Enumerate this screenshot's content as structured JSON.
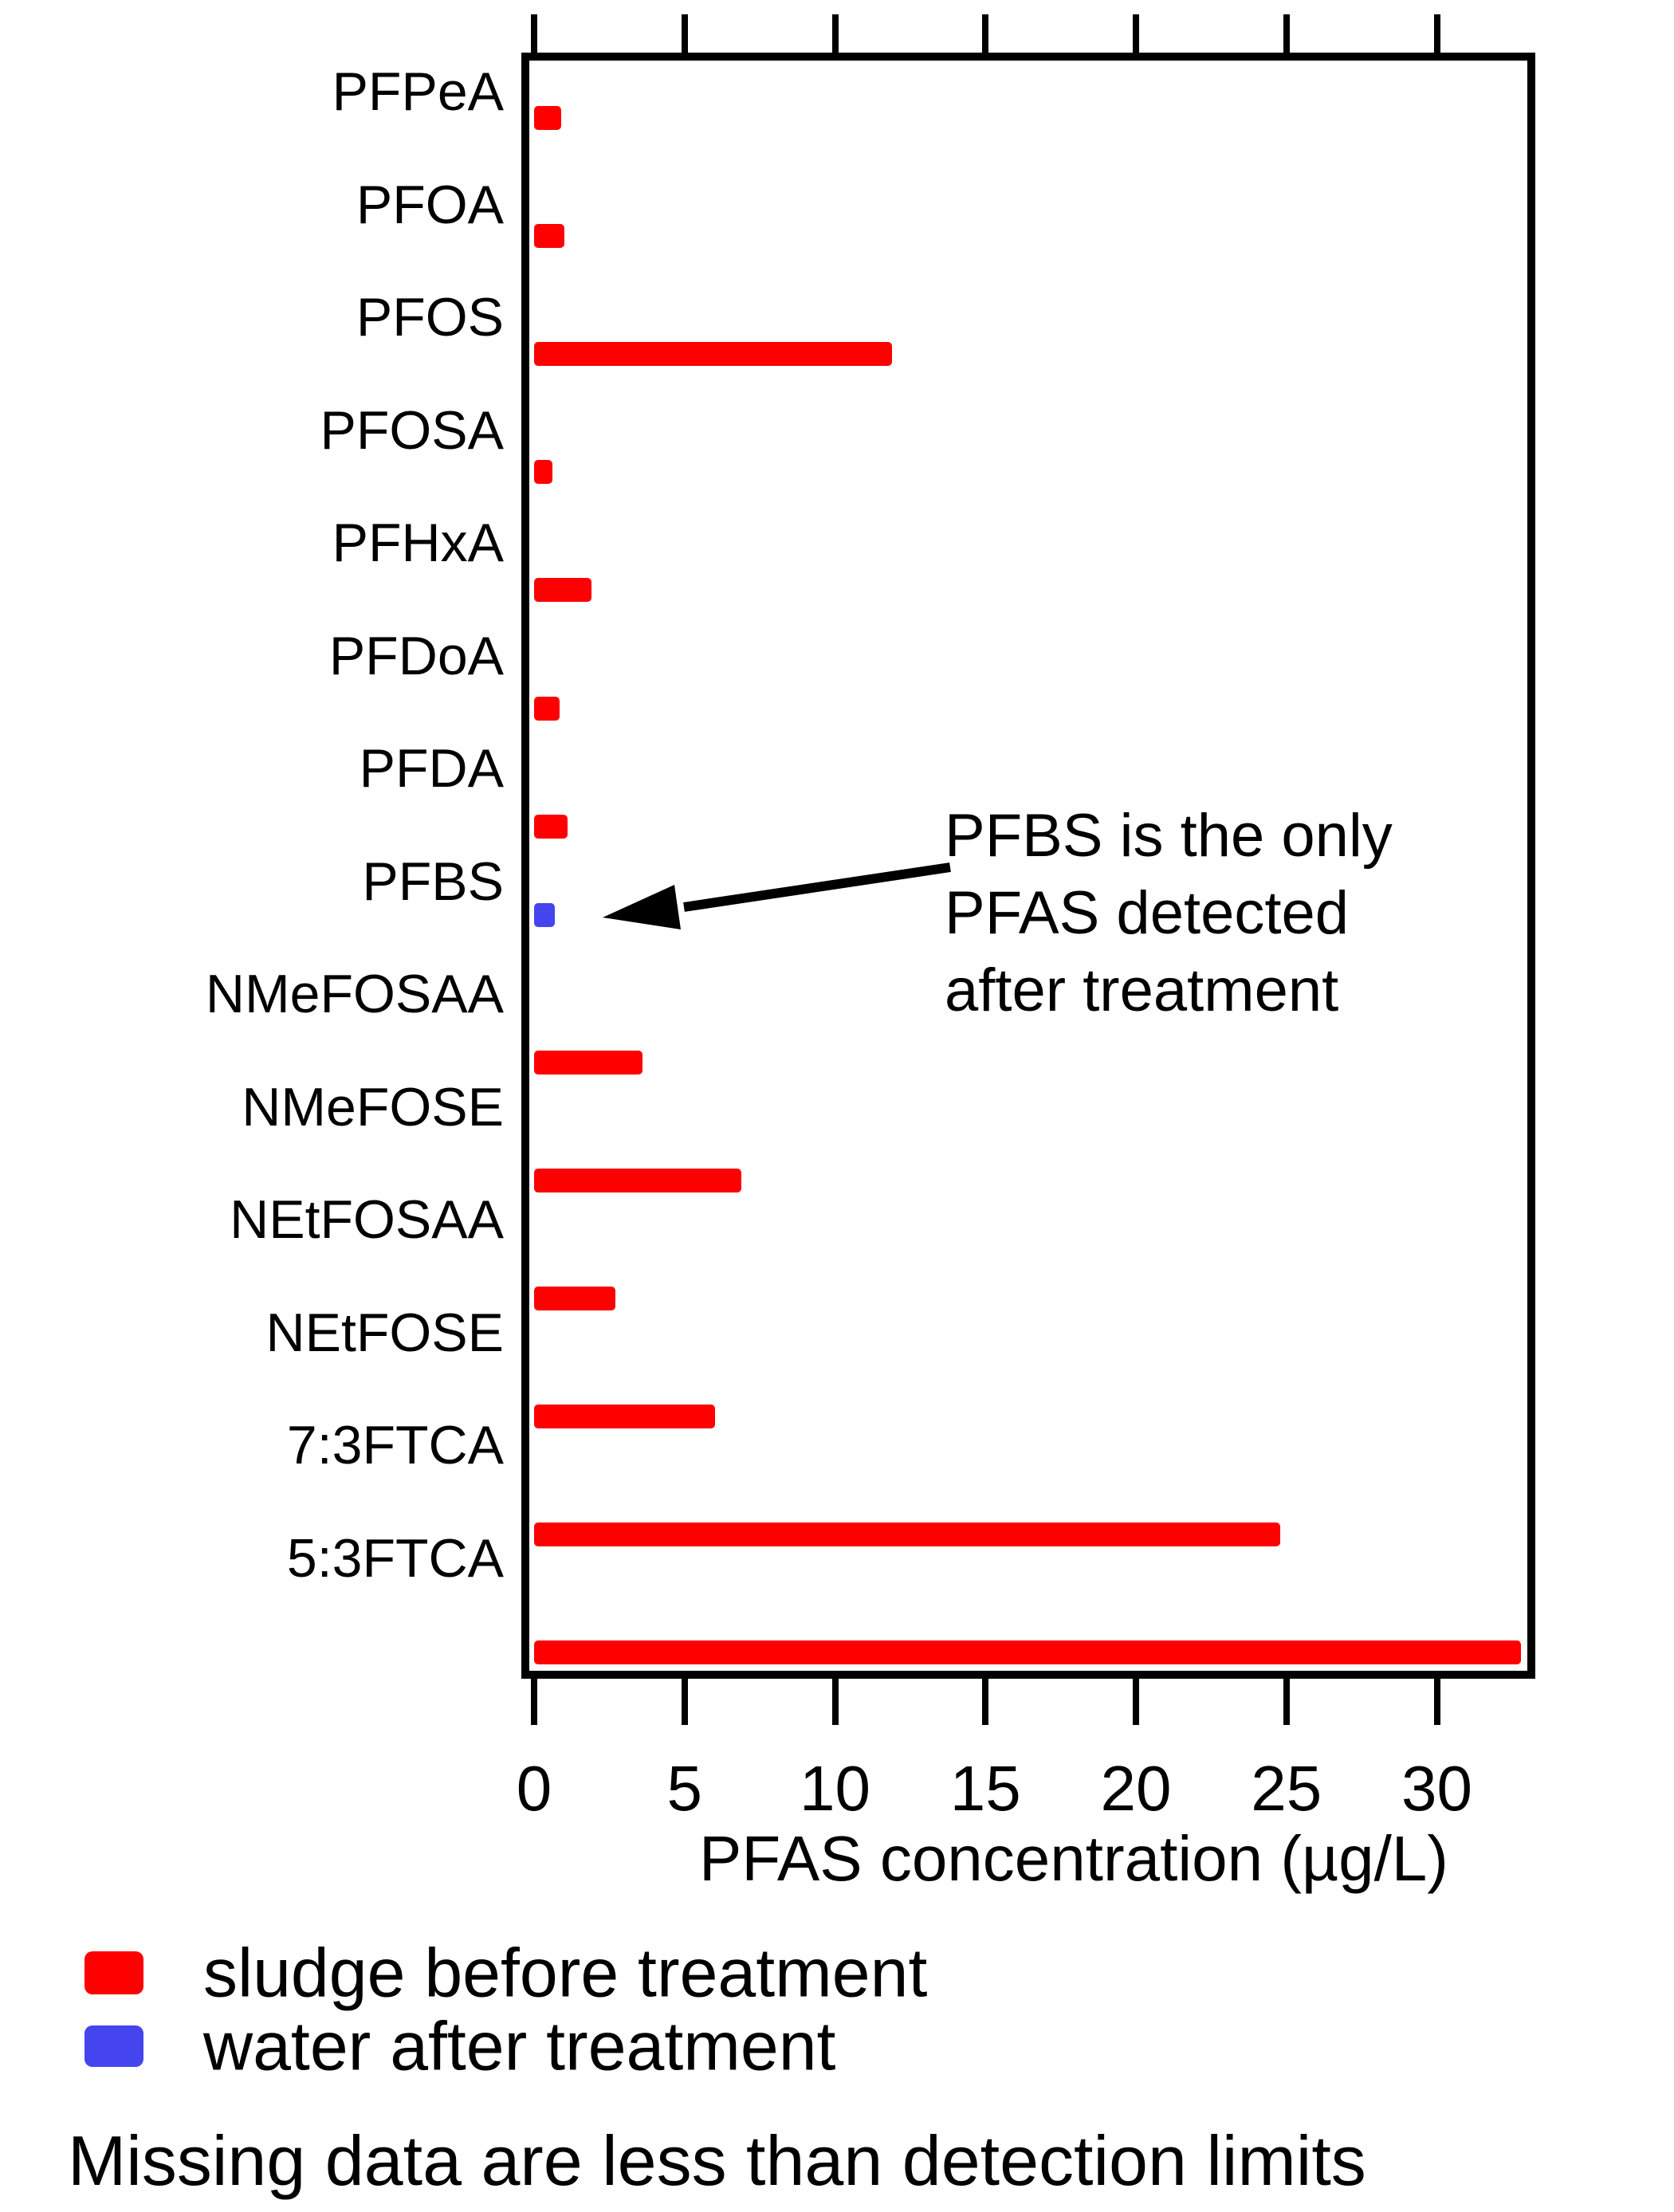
{
  "chart_data": {
    "type": "bar",
    "orientation": "horizontal",
    "title": "",
    "xlabel": "PFAS concentration (µg/L)",
    "ylabel": "",
    "xlim": [
      0,
      33
    ],
    "x_ticks": [
      0,
      5,
      10,
      15,
      20,
      25,
      30
    ],
    "grid": false,
    "legend_position": "bottom-left",
    "categories": [
      "PFPeA",
      "PFOA",
      "PFOS",
      "PFOSA",
      "PFHxA",
      "PFDoA",
      "PFDA",
      "PFBS",
      "NMeFOSAA",
      "NMeFOSE",
      "NEtFOSAA",
      "NEtFOSE",
      "7:3FTCA",
      "5:3FTCA"
    ],
    "series": [
      {
        "name": "sludge before treatment",
        "color": "#ff0000",
        "values": [
          0.9,
          1.0,
          11.9,
          0.6,
          1.9,
          0.85,
          1.1,
          null,
          3.6,
          6.9,
          2.7,
          6.0,
          24.8,
          32.8
        ]
      },
      {
        "name": "water after treatment",
        "color": "#4545ef",
        "values": [
          null,
          null,
          null,
          null,
          null,
          null,
          null,
          0.7,
          null,
          null,
          null,
          null,
          null,
          null
        ]
      }
    ],
    "annotation": {
      "lines": [
        "PFBS is the only",
        "PFAS detected",
        "after treatment"
      ],
      "arrow_target_category": "PFBS"
    },
    "note": "Missing data are less than detection limits"
  }
}
